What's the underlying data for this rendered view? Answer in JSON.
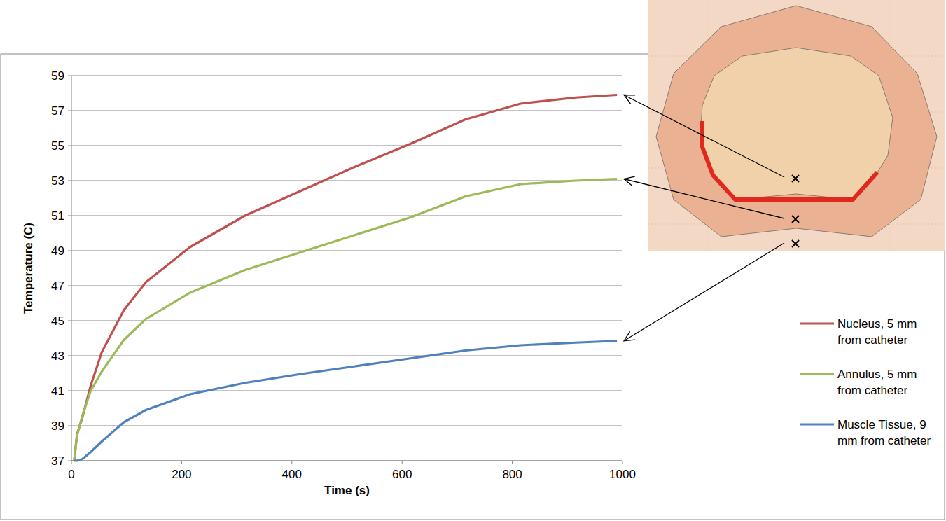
{
  "chart_data": {
    "type": "line",
    "x_label": "Time (s)",
    "y_label": "Temperature (C)",
    "x": [
      5,
      10,
      20,
      35,
      55,
      95,
      135,
      215,
      315,
      415,
      515,
      615,
      715,
      815,
      915,
      990
    ],
    "series": [
      {
        "name": "Nucleus, 5 mm from catheter",
        "color": "#c0504d",
        "values": [
          37,
          38.5,
          39.5,
          41.3,
          43.2,
          45.6,
          47.2,
          49.2,
          51,
          52.4,
          53.8,
          55.1,
          56.5,
          57.4,
          57.75,
          57.9
        ]
      },
      {
        "name": "Annulus, 5 mm from catheter",
        "color": "#9bbb59",
        "values": [
          37,
          38.4,
          39.6,
          41,
          42.1,
          43.9,
          45.1,
          46.6,
          47.9,
          48.9,
          49.9,
          50.9,
          52.1,
          52.8,
          53,
          53.1
        ]
      },
      {
        "name": "Muscle Tissue, 9 mm from catheter",
        "color": "#4f81bd",
        "values": [
          37,
          37,
          37.1,
          37.5,
          38.1,
          39.2,
          39.9,
          40.8,
          41.45,
          41.95,
          42.4,
          42.85,
          43.3,
          43.6,
          43.75,
          43.85
        ]
      }
    ],
    "xlim": [
      0,
      1000
    ],
    "xticks": [
      0,
      200,
      400,
      600,
      800,
      1000
    ],
    "ylim": [
      37,
      59
    ],
    "yticks": [
      37,
      39,
      41,
      43,
      45,
      47,
      49,
      51,
      53,
      55,
      57,
      59
    ],
    "grid": true,
    "legend": "right"
  }
}
